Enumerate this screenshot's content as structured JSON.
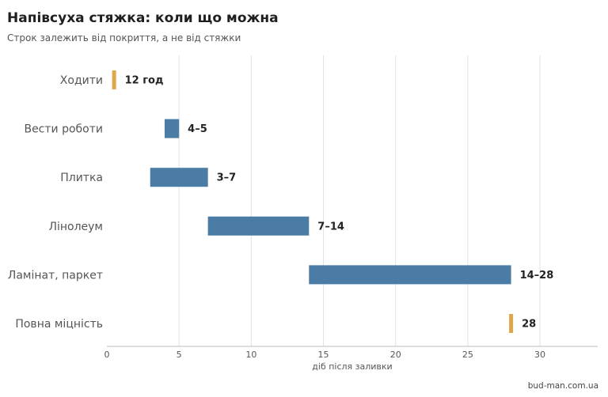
{
  "page": {
    "title": "Напівсуха стяжка: коли що можна",
    "subtitle": "Строк залежить від покриття, а не від стяжки",
    "credit": "bud-man.com.ua"
  },
  "chart_data": {
    "type": "bar",
    "orientation": "horizontal-range",
    "categories": [
      "Ходити",
      "Вести роботи",
      "Плитка",
      "Лінолеум",
      "Ламінат, паркет",
      "Повна міцність"
    ],
    "ranges": [
      [
        0.5,
        0.5
      ],
      [
        4,
        5
      ],
      [
        3,
        7
      ],
      [
        7,
        14
      ],
      [
        14,
        28
      ],
      [
        28,
        28
      ]
    ],
    "data_labels": [
      "12 год",
      "4–5",
      "3–7",
      "7–14",
      "14–28",
      "28"
    ],
    "highlight": [
      true,
      false,
      false,
      false,
      false,
      true
    ],
    "xlabel": "діб після заливки",
    "ylabel": "",
    "xlim": [
      0,
      34
    ],
    "xticks": [
      0,
      5,
      10,
      15,
      20,
      25,
      30
    ],
    "grid": "vertical",
    "colors": {
      "bar": "#4a7ca6",
      "highlight": "#e0a748",
      "grid": "#e2e2e2",
      "axis": "#bbbbbb"
    }
  }
}
